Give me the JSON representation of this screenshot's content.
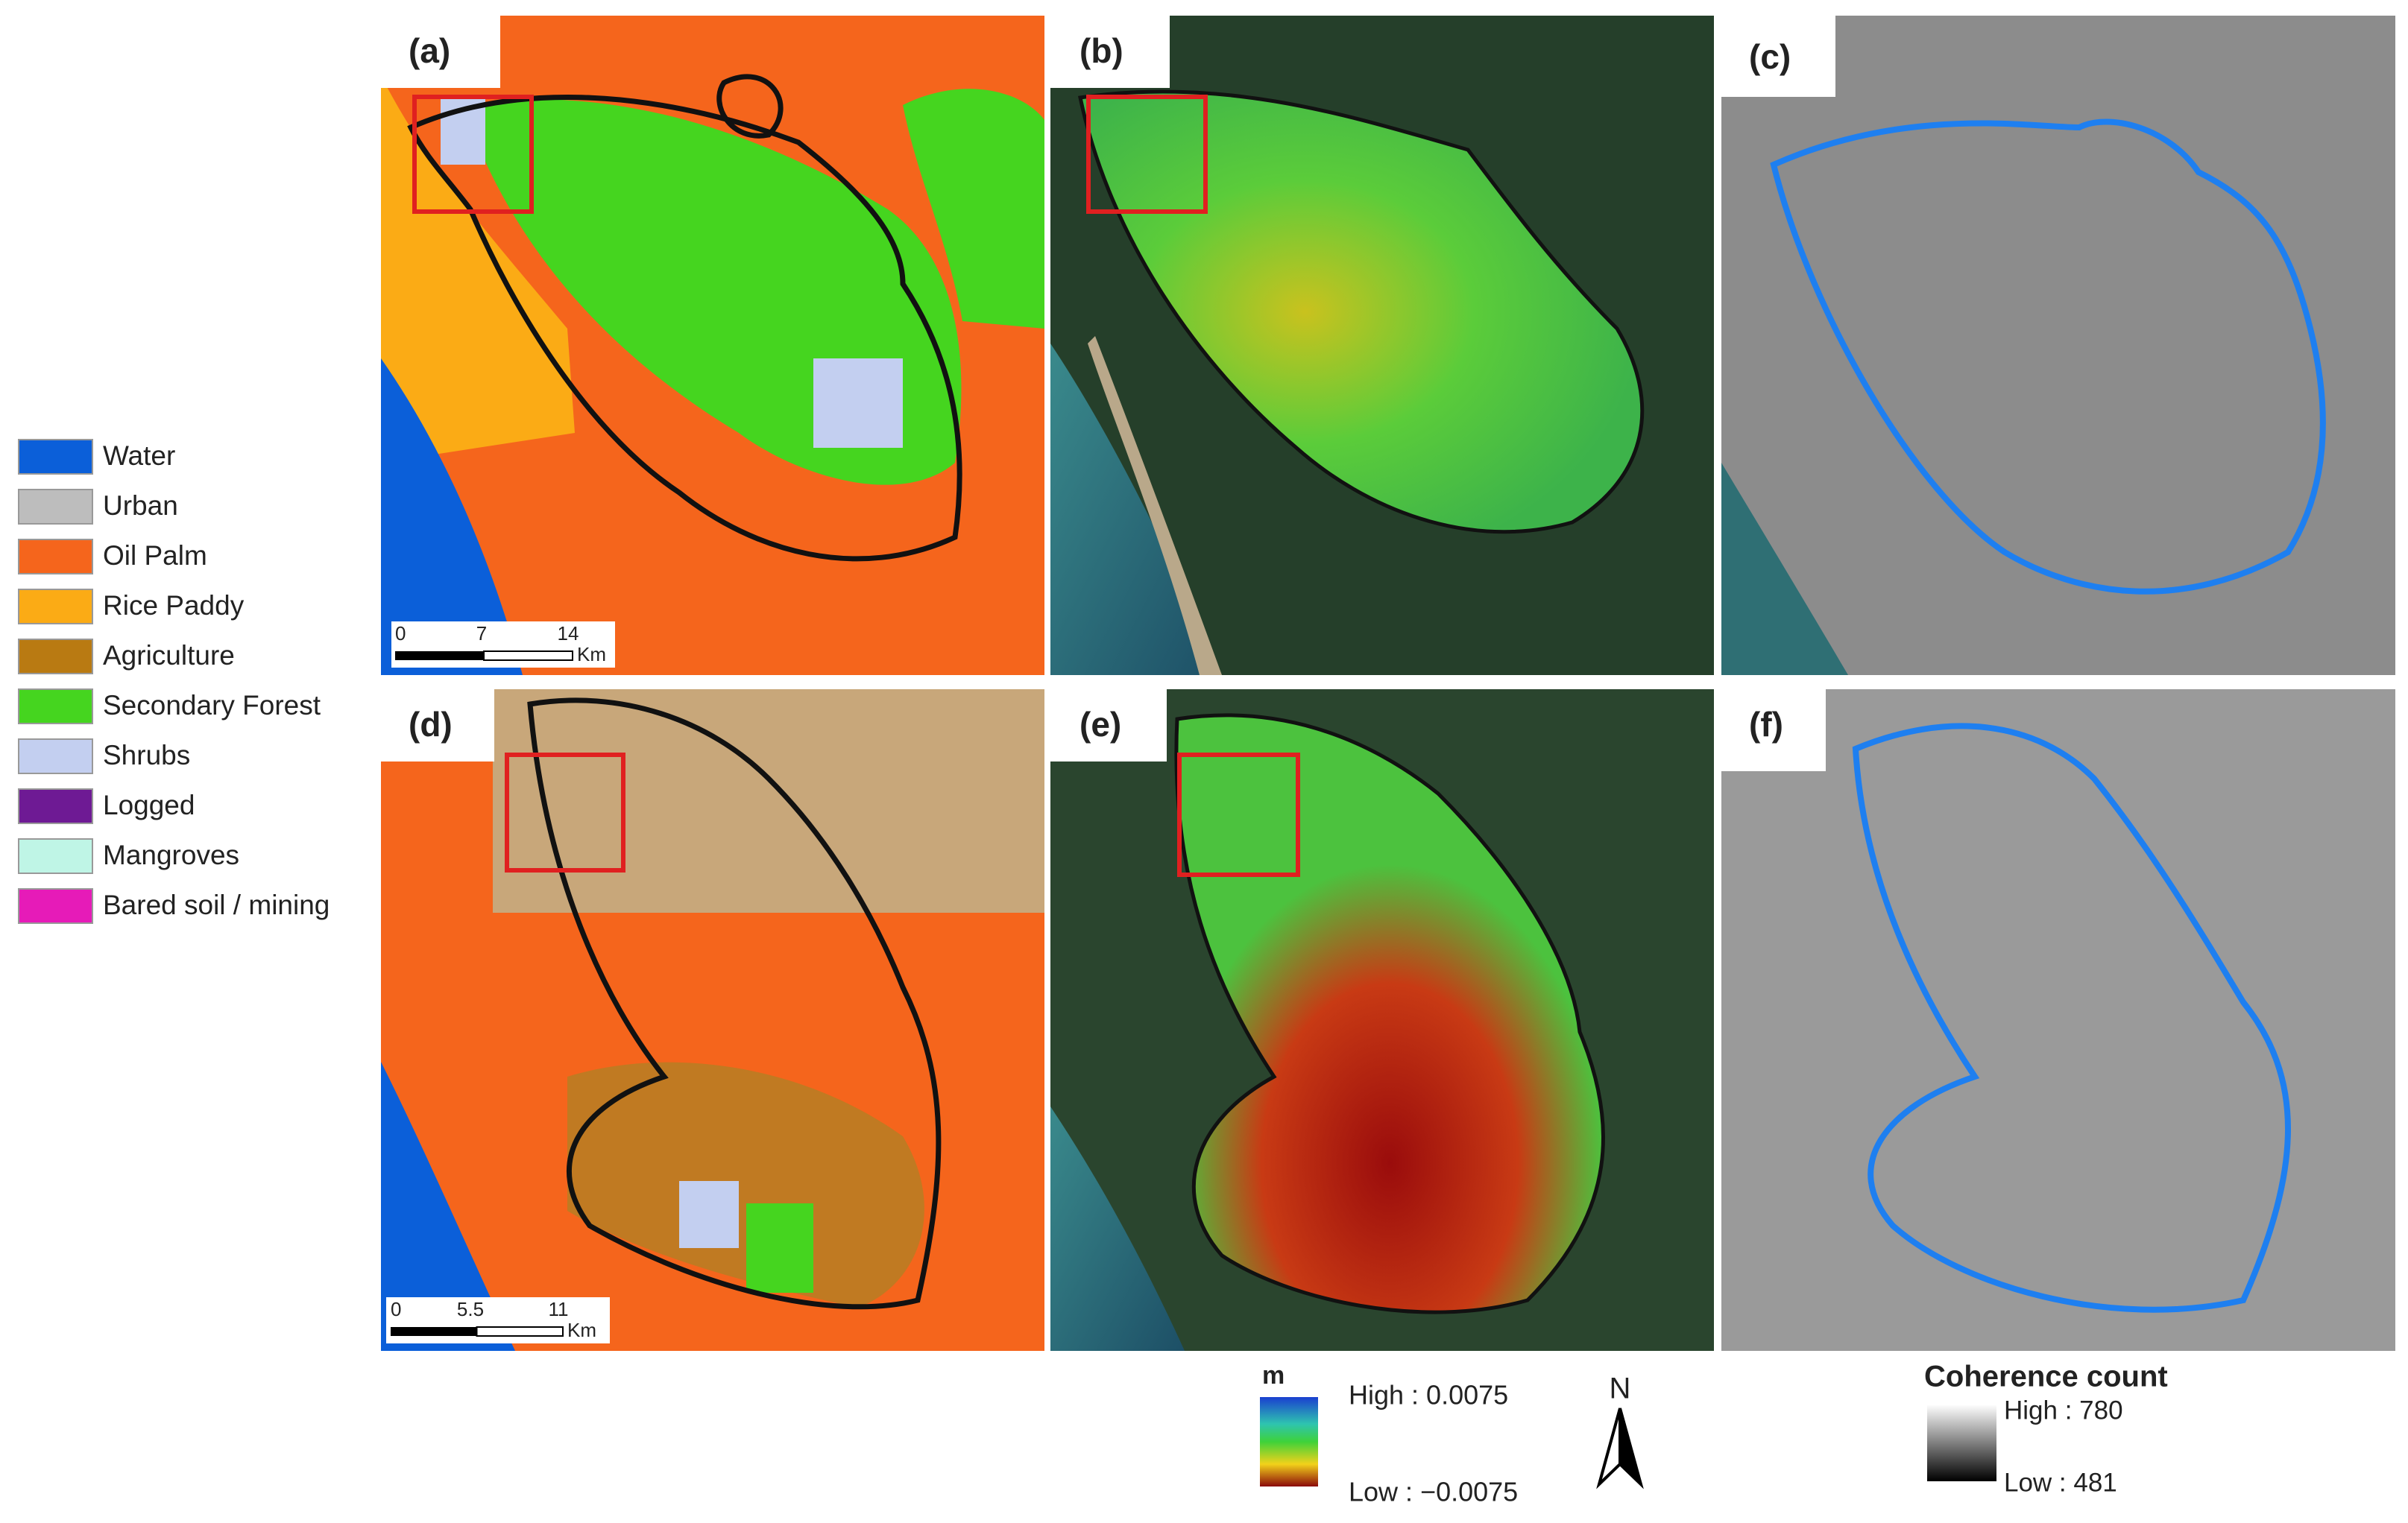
{
  "legend": {
    "items": [
      {
        "label": "Water",
        "color": "#0b5fd9"
      },
      {
        "label": "Urban",
        "color": "#bdbdbd"
      },
      {
        "label": "Oil Palm",
        "color": "#f5651c"
      },
      {
        "label": "Rice Paddy",
        "color": "#fbab15"
      },
      {
        "label": "Agriculture",
        "color": "#b97a12"
      },
      {
        "label": "Secondary Forest",
        "color": "#45d51f"
      },
      {
        "label": "Shrubs",
        "color": "#c3cff0"
      },
      {
        "label": "Logged",
        "color": "#6e1a94"
      },
      {
        "label": "Mangroves",
        "color": "#bff5e6"
      },
      {
        "label": "Bared soil / mining",
        "color": "#e61bb8"
      }
    ]
  },
  "panels": [
    {
      "label": "(a)"
    },
    {
      "label": "(b)"
    },
    {
      "label": "(c)"
    },
    {
      "label": "(d)"
    },
    {
      "label": "(e)"
    },
    {
      "label": "(f)"
    }
  ],
  "scale_bars": [
    {
      "ticks": [
        "0",
        "7",
        "14"
      ],
      "unit": "Km"
    },
    {
      "ticks": [
        "0",
        "5.5",
        "11"
      ],
      "unit": "Km"
    }
  ],
  "deformation_legend": {
    "unit": "m",
    "high": "High : 0.0075",
    "low": "Low : −0.0075"
  },
  "north_arrow": "N",
  "coherence_legend": {
    "title": "Coherence count",
    "high": "High : 780",
    "low": "Low : 481"
  }
}
